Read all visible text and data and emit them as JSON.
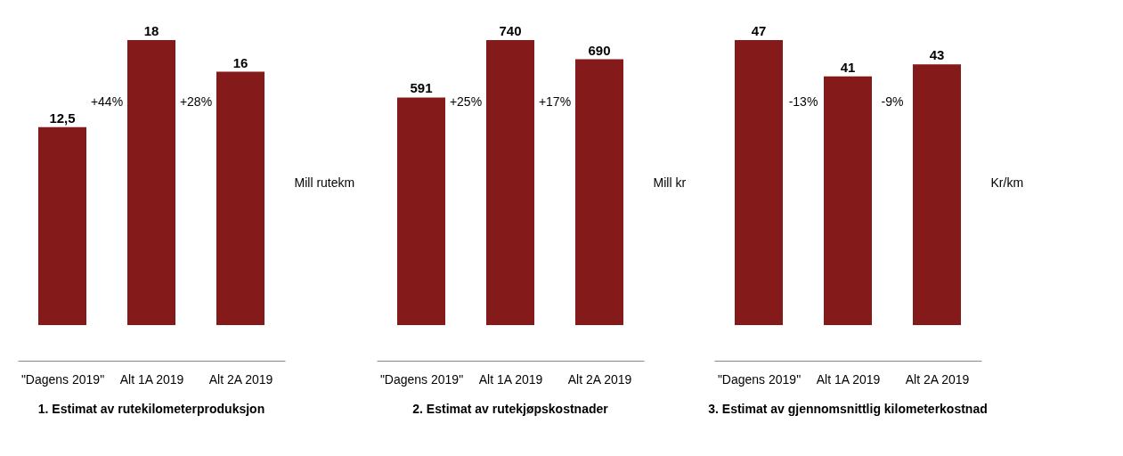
{
  "chart_data": [
    {
      "type": "bar",
      "title": "1. Estimat av rutekilometerproduksjon",
      "ylabel": "Mill rutekm",
      "categories": [
        "\"Dagens 2019\"",
        "Alt 1A 2019",
        "Alt 2A 2019"
      ],
      "values": [
        12.5,
        18,
        16
      ],
      "color": "#841a1a",
      "data_labels": true,
      "value_labels": [
        "12,5",
        "18",
        "16"
      ],
      "tick_labels": "x",
      "annotations": [
        "+44%",
        "+28%"
      ]
    },
    {
      "type": "bar",
      "title": "2. Estimat av rutekjøpskostnader",
      "ylabel": "Mill kr",
      "categories": [
        "\"Dagens 2019\"",
        "Alt 1A 2019",
        "Alt 2A 2019"
      ],
      "values": [
        591,
        740,
        690
      ],
      "color": "#841a1a",
      "data_labels": true,
      "value_labels": [
        "591",
        "740",
        "690"
      ],
      "tick_labels": "x",
      "annotations": [
        "+25%",
        "+17%"
      ]
    },
    {
      "type": "bar",
      "title": "3. Estimat av gjennomsnittlig kilometerkostnad",
      "ylabel": "Kr/km",
      "categories": [
        "\"Dagens 2019\"",
        "Alt 1A 2019",
        "Alt 2A 2019"
      ],
      "values": [
        47,
        41,
        43
      ],
      "color": "#841a1a",
      "data_labels": true,
      "value_labels": [
        "47",
        "41",
        "43"
      ],
      "tick_labels": "x",
      "annotations": [
        "-13%",
        "-9%"
      ]
    }
  ]
}
